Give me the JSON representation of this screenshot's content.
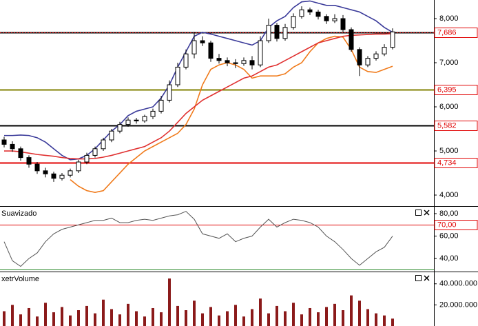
{
  "chart_data": [
    {
      "type": "candlestick",
      "open": [
        5250,
        5150,
        5050,
        4850,
        4700,
        4550,
        4480,
        4380,
        4450,
        4550,
        4750,
        4900,
        5050,
        5250,
        5450,
        5600,
        5700,
        5680,
        5780,
        5900,
        6150,
        6500,
        6900,
        7200,
        7500,
        7450,
        7100,
        7050,
        7000,
        6980,
        7050,
        6950,
        7500,
        7850,
        7550,
        7800,
        8050,
        8200,
        8150,
        8050,
        7950,
        8000,
        7750,
        7300,
        6950,
        7100,
        7200,
        7350
      ],
      "high": [
        5320,
        5220,
        5100,
        4900,
        4750,
        4620,
        4530,
        4500,
        4600,
        4800,
        4960,
        5100,
        5300,
        5500,
        5660,
        5760,
        5750,
        5820,
        5960,
        6250,
        6600,
        7000,
        7300,
        7700,
        7600,
        7500,
        7200,
        7120,
        7080,
        7120,
        7150,
        7600,
        8000,
        7900,
        7880,
        8120,
        8280,
        8250,
        8200,
        8100,
        8100,
        8080,
        7800,
        7350,
        7150,
        7260,
        7420,
        7780
      ],
      "low": [
        5080,
        4980,
        4780,
        4620,
        4480,
        4400,
        4300,
        4330,
        4400,
        4500,
        4700,
        4850,
        5000,
        5200,
        5400,
        5550,
        5620,
        5640,
        5720,
        5850,
        6100,
        6450,
        6850,
        7100,
        7380,
        7020,
        6980,
        6920,
        6880,
        6930,
        6850,
        6900,
        7450,
        7480,
        7500,
        7750,
        8000,
        8080,
        7980,
        7880,
        7900,
        7700,
        7250,
        6700,
        6900,
        7050,
        7150,
        7300
      ],
      "close": [
        5150,
        5050,
        4850,
        4700,
        4550,
        4480,
        4380,
        4450,
        4550,
        4750,
        4900,
        5050,
        5250,
        5450,
        5600,
        5700,
        5680,
        5780,
        5900,
        6150,
        6500,
        6900,
        7200,
        7500,
        7450,
        7100,
        7050,
        7000,
        6980,
        7050,
        6950,
        7500,
        7850,
        7550,
        7800,
        8050,
        8200,
        8150,
        8050,
        7950,
        8000,
        7750,
        7300,
        6950,
        7100,
        7200,
        7350,
        7700
      ],
      "series": [
        {
          "color": "#3b3b9a",
          "values": [
            5350,
            5350,
            5360,
            5350,
            5300,
            5200,
            5050,
            4900,
            4800,
            4820,
            4900,
            5050,
            5250,
            5450,
            5600,
            5800,
            5900,
            5950,
            6000,
            6200,
            6500,
            6900,
            7250,
            7600,
            7690,
            7650,
            7600,
            7550,
            7500,
            7450,
            7400,
            7500,
            7800,
            7950,
            8050,
            8250,
            8380,
            8400,
            8350,
            8300,
            8300,
            8250,
            8200,
            8150,
            8050,
            7950,
            7800,
            7690
          ]
        },
        {
          "color": "#f07a1a",
          "values": [
            null,
            null,
            null,
            null,
            null,
            null,
            null,
            null,
            4350,
            4200,
            4100,
            4060,
            4100,
            4300,
            4500,
            4700,
            4850,
            5000,
            5100,
            5200,
            5300,
            5400,
            5600,
            5950,
            6500,
            6850,
            6950,
            7000,
            6950,
            6850,
            6650,
            6700,
            6700,
            6700,
            6750,
            6900,
            7000,
            7250,
            7450,
            7550,
            7600,
            7580,
            7300,
            6900,
            6800,
            6780,
            6850,
            6920
          ]
        },
        {
          "color": "#e03030",
          "values": [
            5000,
            5000,
            4980,
            4950,
            4920,
            4900,
            4880,
            4850,
            4830,
            4820,
            4820,
            4830,
            4860,
            4900,
            4950,
            5000,
            5050,
            5100,
            5200,
            5300,
            5450,
            5650,
            5850,
            6000,
            6150,
            6250,
            6350,
            6450,
            6550,
            6650,
            6700,
            6800,
            6900,
            6950,
            7050,
            7150,
            7250,
            7350,
            7450,
            7500,
            7550,
            7600,
            7620,
            7630,
            7640,
            7650,
            7650,
            7660
          ]
        }
      ],
      "levels": [
        {
          "value": 7686,
          "label": "7,686",
          "color": "#000000"
        },
        {
          "value": 6395,
          "label": "6,395",
          "color": "#808000"
        },
        {
          "value": 5582,
          "label": "5,582",
          "color": "#000000"
        },
        {
          "value": 4734,
          "label": "4,734",
          "color": "#e00000"
        }
      ],
      "ylim": [
        3766,
        8422
      ],
      "yticks": [
        {
          "value": 4000,
          "label": "4,000"
        },
        {
          "value": 5000,
          "label": "5,000"
        },
        {
          "value": 6000,
          "label": "6,000"
        },
        {
          "value": 7000,
          "label": "7,000"
        },
        {
          "value": 8000,
          "label": "8,000"
        }
      ]
    },
    {
      "type": "line",
      "title": "Suavizado",
      "series": [
        {
          "color": "#555555",
          "values": [
            55,
            38,
            33,
            40,
            45,
            55,
            62,
            66,
            68,
            70,
            72,
            74,
            74,
            76,
            72,
            72,
            74,
            75,
            74,
            76,
            78,
            79,
            82,
            75,
            62,
            60,
            58,
            62,
            55,
            58,
            60,
            68,
            75,
            68,
            72,
            75,
            74,
            72,
            68,
            60,
            55,
            48,
            40,
            34,
            40,
            46,
            50,
            60
          ]
        }
      ],
      "levels": [
        {
          "value": 70,
          "label": "70,00",
          "color": "#e00000"
        },
        {
          "value": 30,
          "color": "#2a8a2a"
        }
      ],
      "ylim": [
        29,
        85.5
      ],
      "yticks": [
        {
          "value": 40,
          "label": "40,00"
        },
        {
          "value": 60,
          "label": "60,00"
        },
        {
          "value": 80,
          "label": "80,00"
        }
      ]
    },
    {
      "type": "bar",
      "title": "xetrVolume",
      "color": "#8b1a1a",
      "values": [
        14000000,
        20000000,
        11000000,
        17000000,
        9000000,
        22000000,
        13000000,
        18000000,
        10000000,
        15000000,
        19000000,
        12000000,
        25000000,
        16000000,
        11000000,
        21000000,
        14000000,
        9000000,
        17000000,
        13000000,
        45000000,
        19000000,
        15000000,
        24000000,
        12000000,
        18000000,
        10000000,
        14000000,
        20000000,
        9000000,
        16000000,
        26000000,
        12000000,
        19000000,
        14000000,
        22000000,
        11000000,
        17000000,
        13000000,
        18000000,
        21000000,
        15000000,
        29000000,
        24000000,
        16000000,
        12000000,
        10000000,
        7000000
      ],
      "ylim": [
        0,
        50300000
      ],
      "yticks": [
        {
          "value": 20000000,
          "label": "20.000.000"
        },
        {
          "value": 40000000,
          "label": "40.000.000"
        }
      ]
    }
  ]
}
